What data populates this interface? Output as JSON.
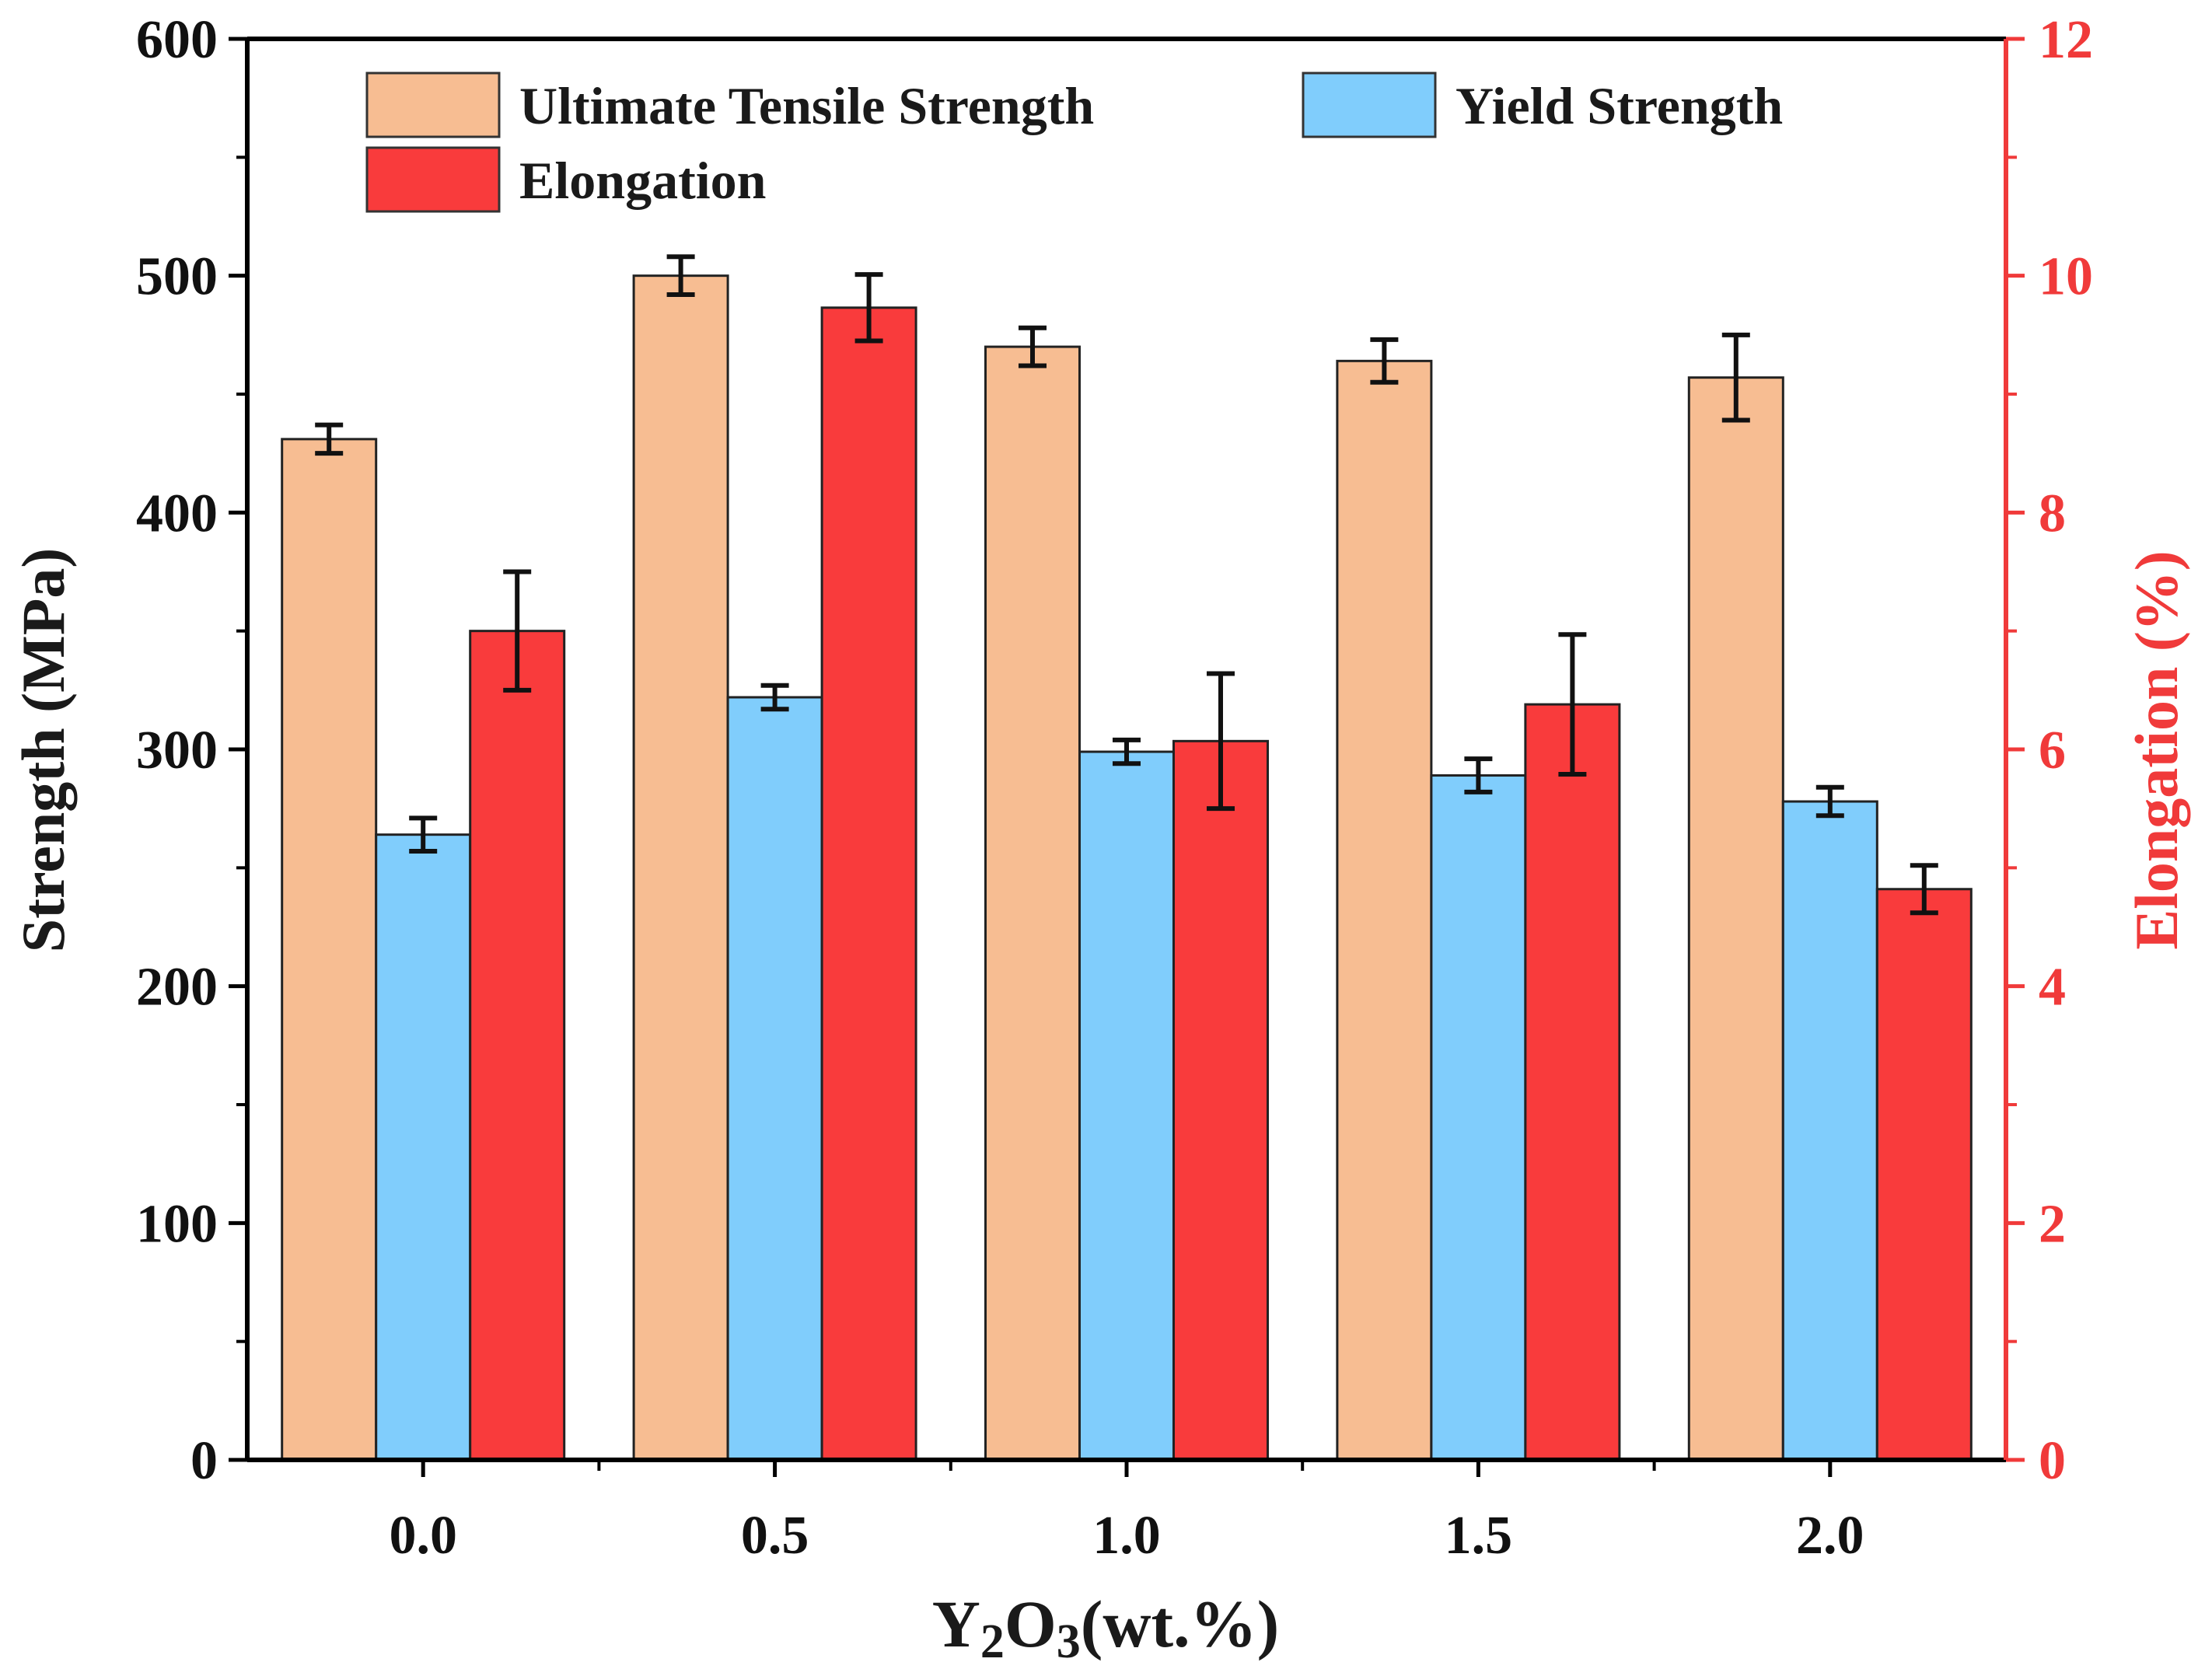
{
  "chart_data": {
    "type": "bar",
    "title": "",
    "xlabel_main": "Y",
    "xlabel_sub1": "2",
    "xlabel_mid": "O",
    "xlabel_sub2": "3",
    "xlabel_tail": "(wt.%)",
    "ylabel": "Strength (MPa)",
    "y2label": "Elongation (%)",
    "categories": [
      "0.0",
      "0.5",
      "1.0",
      "1.5",
      "2.0"
    ],
    "ylim": [
      0,
      600
    ],
    "y2lim": [
      0,
      12
    ],
    "yticks": [
      0,
      100,
      200,
      300,
      400,
      500,
      600
    ],
    "y2ticks": [
      0,
      2,
      4,
      6,
      8,
      10,
      12
    ],
    "series": [
      {
        "name": "Ultimate Tensile Strength",
        "axis": "left",
        "color": "#f7bd92",
        "values": [
          431,
          500,
          470,
          464,
          457
        ],
        "errors": [
          6,
          8,
          8,
          9,
          18
        ]
      },
      {
        "name": "Yield Strength",
        "axis": "left",
        "color": "#80cdfc",
        "values": [
          264,
          322,
          299,
          289,
          278
        ],
        "errors": [
          7,
          5,
          5,
          7,
          6
        ]
      },
      {
        "name": "Elongation",
        "axis": "right",
        "color": "#f93b3c",
        "values": [
          7.0,
          9.73,
          6.07,
          6.38,
          4.82
        ],
        "errors": [
          0.5,
          0.28,
          0.57,
          0.59,
          0.2
        ]
      }
    ],
    "legend_position": "top-left",
    "right_axis_color": "#f03a3a"
  }
}
